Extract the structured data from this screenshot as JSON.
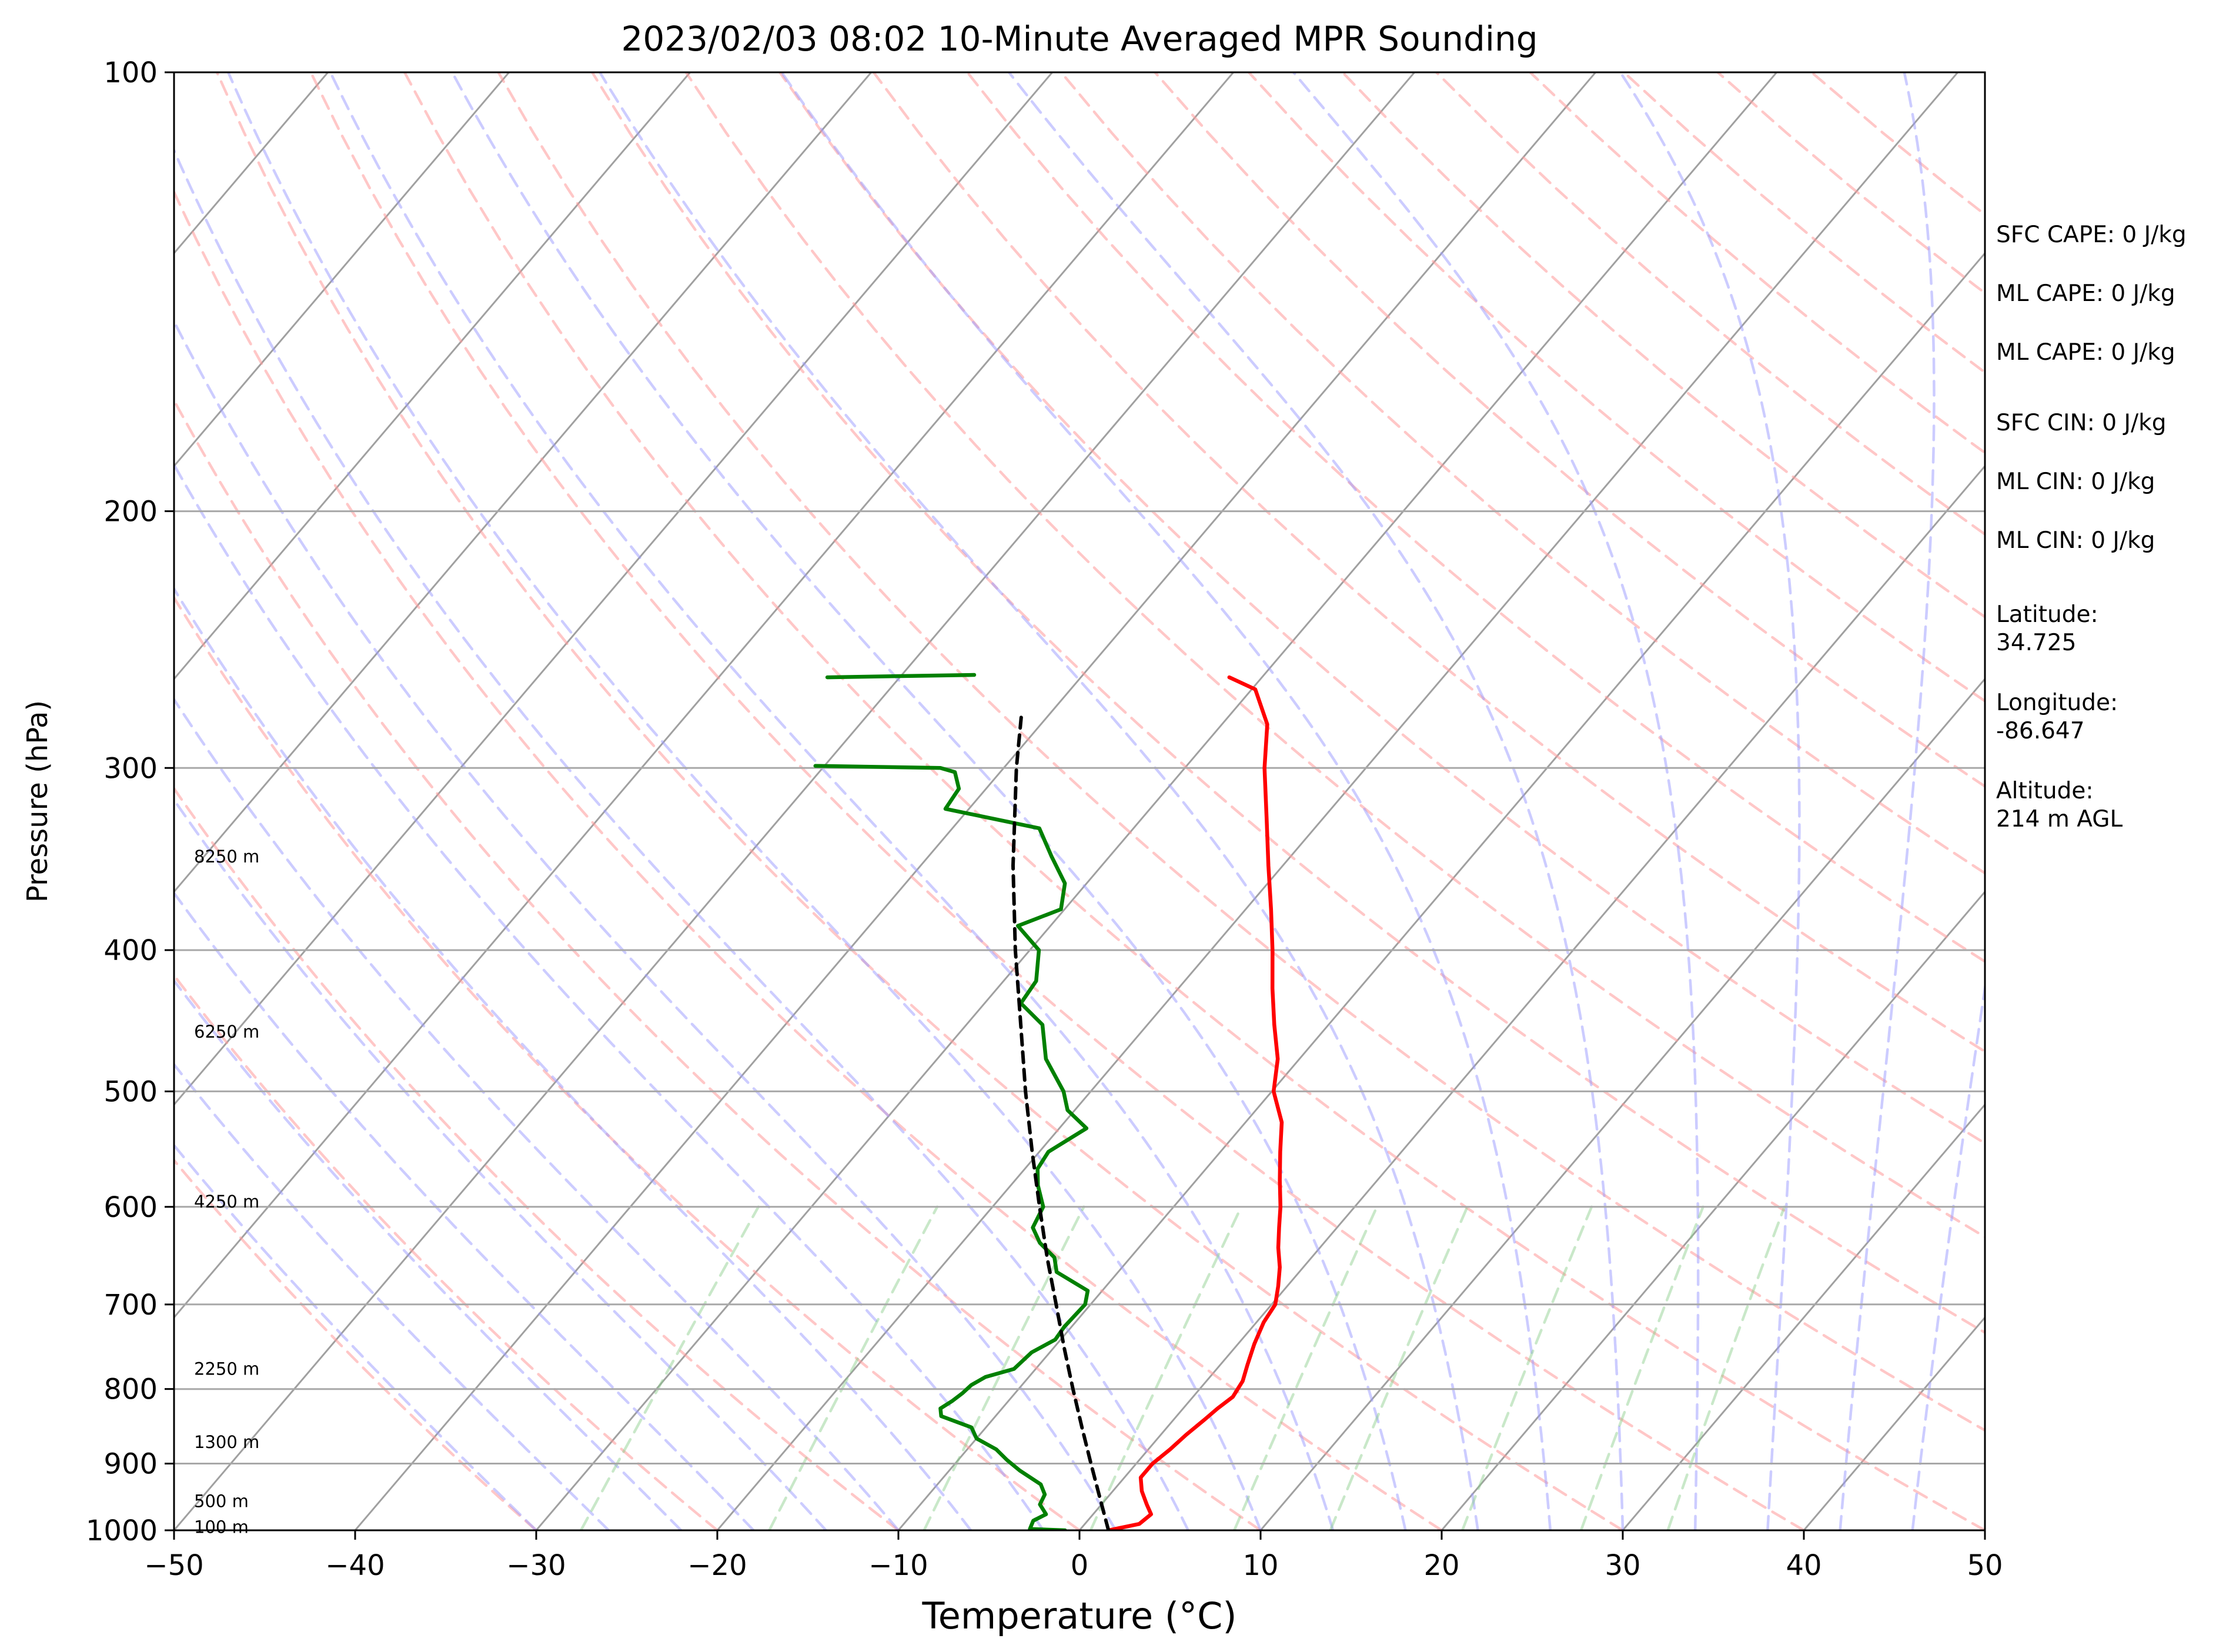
{
  "chart_data": {
    "type": "line",
    "title": "2023/02/03 08:02 10-Minute Averaged MPR Sounding",
    "xlabel": "Temperature (°C)",
    "ylabel": "Pressure (hPa)",
    "xlim": [
      -50,
      50
    ],
    "ylim": [
      1000,
      100
    ],
    "y_scale": "log",
    "grid": "horizontal isobars at labeled pressures",
    "x_ticks": [
      -50,
      -40,
      -30,
      -20,
      -10,
      0,
      10,
      20,
      30,
      40,
      50
    ],
    "x_tick_labels": [
      "−50",
      "−40",
      "−30",
      "−20",
      "−10",
      "0",
      "10",
      "20",
      "30",
      "40",
      "50"
    ],
    "y_ticks": [
      1000,
      900,
      800,
      700,
      600,
      500,
      400,
      300,
      200,
      100
    ],
    "y_tick_labels": [
      "1000",
      "900",
      "800",
      "700",
      "600",
      "500",
      "400",
      "300",
      "200",
      "100"
    ],
    "skew_deg_per_decade": 68.5,
    "series": [
      {
        "role": "temperature",
        "color": "#ff0000",
        "points": [
          [
            1000,
            1.6
          ],
          [
            990,
            3.0
          ],
          [
            975,
            3.2
          ],
          [
            960,
            2.5
          ],
          [
            940,
            1.6
          ],
          [
            920,
            0.9
          ],
          [
            900,
            0.9
          ],
          [
            880,
            1.2
          ],
          [
            860,
            1.4
          ],
          [
            840,
            1.7
          ],
          [
            825,
            1.9
          ],
          [
            810,
            2.2
          ],
          [
            790,
            2.0
          ],
          [
            770,
            1.5
          ],
          [
            745,
            0.9
          ],
          [
            720,
            0.4
          ],
          [
            700,
            0.2
          ],
          [
            680,
            -0.5
          ],
          [
            660,
            -1.3
          ],
          [
            640,
            -2.3
          ],
          [
            620,
            -3.2
          ],
          [
            600,
            -4.1
          ],
          [
            575,
            -5.4
          ],
          [
            550,
            -6.7
          ],
          [
            525,
            -8.0
          ],
          [
            500,
            -9.9
          ],
          [
            475,
            -11.2
          ],
          [
            450,
            -13.0
          ],
          [
            425,
            -14.8
          ],
          [
            400,
            -16.6
          ],
          [
            375,
            -18.6
          ],
          [
            350,
            -20.8
          ],
          [
            325,
            -23.1
          ],
          [
            300,
            -25.6
          ],
          [
            280,
            -27.5
          ],
          [
            265,
            -29.8
          ],
          [
            260,
            -31.8
          ]
        ]
      },
      {
        "role": "dewpoint",
        "color": "#008000",
        "points": [
          [
            1000,
            -0.8
          ],
          [
            998,
            -2.8
          ],
          [
            985,
            -3.0
          ],
          [
            975,
            -2.6
          ],
          [
            960,
            -3.4
          ],
          [
            945,
            -3.6
          ],
          [
            930,
            -4.3
          ],
          [
            910,
            -6.1
          ],
          [
            895,
            -7.3
          ],
          [
            880,
            -8.4
          ],
          [
            865,
            -10.0
          ],
          [
            850,
            -10.8
          ],
          [
            835,
            -13.0
          ],
          [
            825,
            -13.4
          ],
          [
            815,
            -13.1
          ],
          [
            805,
            -12.9
          ],
          [
            795,
            -12.8
          ],
          [
            785,
            -12.4
          ],
          [
            775,
            -11.2
          ],
          [
            755,
            -11.0
          ],
          [
            740,
            -10.3
          ],
          [
            725,
            -10.4
          ],
          [
            700,
            -10.3
          ],
          [
            685,
            -10.8
          ],
          [
            665,
            -13.4
          ],
          [
            650,
            -14.2
          ],
          [
            635,
            -15.7
          ],
          [
            620,
            -16.8
          ],
          [
            600,
            -17.2
          ],
          [
            580,
            -18.5
          ],
          [
            565,
            -19.3
          ],
          [
            550,
            -19.5
          ],
          [
            530,
            -18.5
          ],
          [
            515,
            -20.4
          ],
          [
            500,
            -21.5
          ],
          [
            475,
            -24.0
          ],
          [
            450,
            -25.8
          ],
          [
            435,
            -28.0
          ],
          [
            420,
            -28.2
          ],
          [
            400,
            -29.5
          ],
          [
            385,
            -31.8
          ],
          [
            375,
            -30.2
          ],
          [
            360,
            -31.2
          ],
          [
            345,
            -33.2
          ],
          [
            330,
            -35.2
          ],
          [
            320,
            -41.3
          ],
          [
            310,
            -41.5
          ],
          [
            302,
            -42.5
          ],
          [
            300,
            -43.5
          ],
          [
            299,
            -50.5
          ]
        ],
        "upper_segment": [
          [
            260,
            -54.0
          ],
          [
            259,
            -46.0
          ]
        ]
      },
      {
        "role": "parcel",
        "color": "#000000",
        "style": "dashed",
        "points": [
          [
            1000,
            1.6
          ],
          [
            950,
            -0.4
          ],
          [
            900,
            -2.5
          ],
          [
            850,
            -4.7
          ],
          [
            800,
            -7.0
          ],
          [
            750,
            -9.4
          ],
          [
            700,
            -11.9
          ],
          [
            650,
            -14.6
          ],
          [
            600,
            -17.4
          ],
          [
            550,
            -20.4
          ],
          [
            500,
            -23.6
          ],
          [
            450,
            -27.0
          ],
          [
            400,
            -30.8
          ],
          [
            350,
            -34.9
          ],
          [
            300,
            -39.3
          ],
          [
            275,
            -41.6
          ]
        ]
      }
    ],
    "reference_lines": {
      "dry_adiabats": {
        "color": "#ff9999",
        "style": "dashed"
      },
      "moist_adiabats": {
        "color": "#9999ff",
        "style": "dashed"
      },
      "mixing_ratio": {
        "color": "#88cc88",
        "style": "dashed"
      },
      "isotherms": {
        "color": "#a0a0a0",
        "style": "solid"
      }
    },
    "height_labels": [
      {
        "text": "8250 m",
        "pressure": 345
      },
      {
        "text": "6250 m",
        "pressure": 455
      },
      {
        "text": "4250 m",
        "pressure": 595
      },
      {
        "text": "2250 m",
        "pressure": 775
      },
      {
        "text": "1300 m",
        "pressure": 870
      },
      {
        "text": "500 m",
        "pressure": 955
      },
      {
        "text": "100 m",
        "pressure": 995
      }
    ]
  },
  "info": {
    "sfc_cape": "SFC CAPE: 0 J/kg",
    "ml_cape_1": "ML CAPE: 0 J/kg",
    "ml_cape_2": "ML CAPE: 0 J/kg",
    "sfc_cin": "SFC CIN: 0 J/kg",
    "ml_cin_1": "ML CIN: 0 J/kg",
    "ml_cin_2": "ML CIN: 0 J/kg",
    "latitude": "Latitude:\n34.725",
    "longitude": "Longitude:\n-86.647",
    "altitude": "Altitude:\n214 m AGL"
  }
}
